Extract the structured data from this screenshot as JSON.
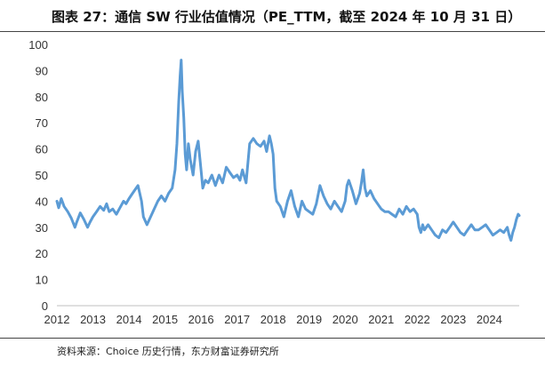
{
  "header": {
    "title": "图表 27：通信 SW 行业估值情况（PE_TTM，截至 2024 年 10 月 31 日）"
  },
  "footer": {
    "source": "资料来源：Choice 历史行情，东方财富证券研究所"
  },
  "colors": {
    "line": "#5b9bd5",
    "axis": "#bfbfbf",
    "rule": "#444444"
  },
  "chart_data": {
    "type": "line",
    "title": "通信 SW 行业估值情况（PE_TTM，截至 2024 年 10 月 31 日）",
    "xlabel": "",
    "ylabel": "",
    "ylim": [
      0,
      100
    ],
    "yticks": [
      0,
      10,
      20,
      30,
      40,
      50,
      60,
      70,
      80,
      90,
      100
    ],
    "xlim": [
      2012,
      2024.83
    ],
    "xticks": [
      "2012",
      "2013",
      "2014",
      "2015",
      "2016",
      "2017",
      "2018",
      "2019",
      "2020",
      "2021",
      "2022",
      "2023",
      "2024"
    ],
    "grid": false,
    "legend": "none",
    "series": [
      {
        "name": "PE_TTM",
        "x": [
          2012.0,
          2012.05,
          2012.12,
          2012.2,
          2012.3,
          2012.4,
          2012.5,
          2012.55,
          2012.65,
          2012.75,
          2012.85,
          2012.92,
          2013.0,
          2013.1,
          2013.2,
          2013.3,
          2013.38,
          2013.45,
          2013.55,
          2013.65,
          2013.75,
          2013.85,
          2013.92,
          2014.0,
          2014.05,
          2014.15,
          2014.25,
          2014.35,
          2014.4,
          2014.5,
          2014.6,
          2014.7,
          2014.8,
          2014.9,
          2015.0,
          2015.1,
          2015.2,
          2015.28,
          2015.33,
          2015.38,
          2015.42,
          2015.45,
          2015.48,
          2015.52,
          2015.56,
          2015.6,
          2015.65,
          2015.7,
          2015.78,
          2015.85,
          2015.92,
          2016.0,
          2016.05,
          2016.12,
          2016.2,
          2016.3,
          2016.4,
          2016.5,
          2016.6,
          2016.7,
          2016.8,
          2016.9,
          2017.0,
          2017.08,
          2017.15,
          2017.25,
          2017.35,
          2017.45,
          2017.55,
          2017.65,
          2017.75,
          2017.82,
          2017.9,
          2017.95,
          2018.0,
          2018.05,
          2018.1,
          2018.2,
          2018.3,
          2018.4,
          2018.5,
          2018.6,
          2018.7,
          2018.8,
          2018.9,
          2019.0,
          2019.1,
          2019.2,
          2019.3,
          2019.4,
          2019.5,
          2019.6,
          2019.7,
          2019.8,
          2019.9,
          2020.0,
          2020.05,
          2020.1,
          2020.2,
          2020.3,
          2020.4,
          2020.45,
          2020.5,
          2020.55,
          2020.6,
          2020.7,
          2020.8,
          2020.9,
          2021.0,
          2021.1,
          2021.2,
          2021.3,
          2021.4,
          2021.5,
          2021.6,
          2021.7,
          2021.8,
          2021.9,
          2022.0,
          2022.05,
          2022.1,
          2022.15,
          2022.2,
          2022.3,
          2022.4,
          2022.5,
          2022.6,
          2022.7,
          2022.8,
          2022.9,
          2023.0,
          2023.1,
          2023.2,
          2023.3,
          2023.4,
          2023.5,
          2023.6,
          2023.7,
          2023.8,
          2023.9,
          2024.0,
          2024.1,
          2024.2,
          2024.3,
          2024.4,
          2024.5,
          2024.55,
          2024.6,
          2024.65,
          2024.7,
          2024.75,
          2024.8,
          2024.83
        ],
        "values": [
          40,
          37.5,
          41,
          38,
          36,
          33.5,
          30,
          32,
          35.5,
          33,
          30,
          32,
          34,
          36,
          38,
          36.5,
          39,
          36,
          37,
          35,
          37.5,
          40,
          39,
          41,
          42,
          44,
          46,
          40,
          34,
          31,
          34,
          37,
          40,
          42,
          40,
          43,
          45,
          52,
          62,
          78,
          88,
          94,
          82,
          72,
          58,
          52,
          62,
          56,
          50,
          59,
          63,
          52,
          45,
          48,
          47,
          50,
          46,
          50,
          47,
          53,
          51,
          49,
          50,
          48,
          52,
          47,
          62,
          64,
          62,
          61,
          63,
          59,
          65,
          62,
          58,
          45,
          40,
          38,
          34,
          40,
          44,
          38,
          34,
          40,
          37,
          36,
          35,
          39,
          46,
          42,
          39,
          37,
          40,
          38,
          36,
          40,
          46,
          48,
          44,
          39,
          43,
          47,
          52,
          45,
          42,
          44,
          41,
          39,
          37,
          36,
          36,
          35,
          34,
          37,
          35,
          38,
          36,
          37,
          35,
          30,
          28,
          31,
          29,
          31,
          29,
          27,
          26,
          29,
          28,
          30,
          32,
          30,
          28,
          27,
          29,
          31,
          29,
          29,
          30,
          31,
          29,
          27,
          28,
          29,
          28,
          30,
          27,
          25,
          28,
          30,
          33,
          35,
          34.5
        ]
      }
    ]
  }
}
